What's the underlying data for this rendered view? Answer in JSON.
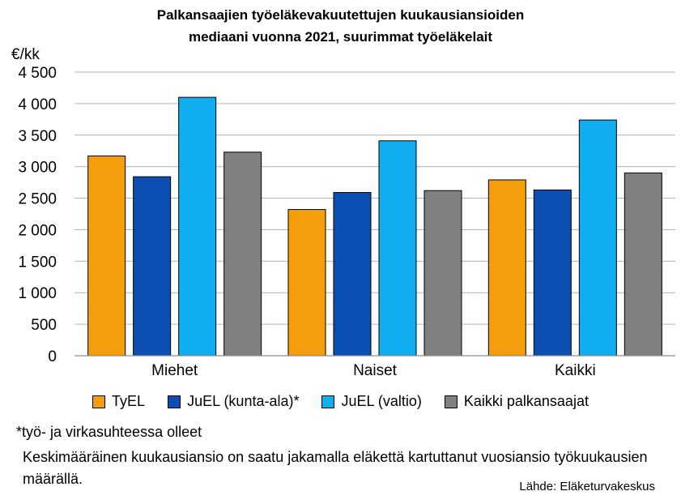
{
  "chart_data": {
    "type": "bar",
    "title_line1": "Palkansaajien työeläkevakuutettujen kuukausiansioiden",
    "title_line2": "mediaani vuonna 2021, suurimmat työeläkelait",
    "ylabel": "€/kk",
    "ylim": [
      0,
      4500
    ],
    "yticks": [
      0,
      500,
      1000,
      1500,
      2000,
      2500,
      3000,
      3500,
      4000,
      4500
    ],
    "ytick_labels": [
      "0",
      "500",
      "1 000",
      "1 500",
      "2 000",
      "2 500",
      "3 000",
      "3 500",
      "4 000",
      "4 500"
    ],
    "categories": [
      "Miehet",
      "Naiset",
      "Kaikki"
    ],
    "series": [
      {
        "name": "TyEL",
        "color": "#F59E0B",
        "values": [
          3170,
          2320,
          2790
        ]
      },
      {
        "name": "JuEL (kunta-ala)*",
        "color": "#0B4FB3",
        "values": [
          2840,
          2590,
          2630
        ]
      },
      {
        "name": "JuEL (valtio)",
        "color": "#10AEEF",
        "values": [
          4100,
          3410,
          3740
        ]
      },
      {
        "name": "Kaikki palkansaajat",
        "color": "#808080",
        "values": [
          3230,
          2620,
          2900
        ]
      }
    ],
    "grid": true,
    "legend_position": "bottom"
  },
  "notes": {
    "footnote": "*työ- ja virkasuhteessa olleet",
    "description": "Keskimääräinen kuukausiansio on saatu jakamalla eläkettä kartuttanut vuosiansio työkuukausien määrällä.",
    "source": "Lähde: Eläketurvakeskus"
  }
}
